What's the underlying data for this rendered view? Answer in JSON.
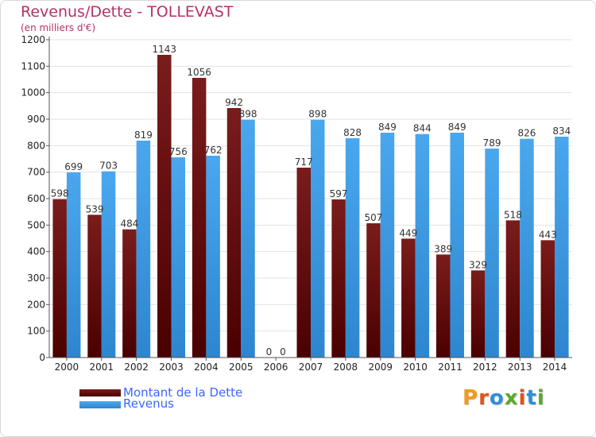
{
  "header": {
    "title": "Revenus/Dette - TOLLEVAST",
    "subtitle": "(en milliers d'€)"
  },
  "legend": {
    "debt_label": "Montant de la Dette",
    "revenue_label": "Revenus"
  },
  "logo": {
    "text": "Proxiti",
    "letters": [
      "P",
      "r",
      "o",
      "x",
      "i",
      "t",
      "i"
    ]
  },
  "colors": {
    "debt_top": "#7a1c1c",
    "debt_bottom": "#4a0000",
    "revenue_top": "#4aa7ee",
    "revenue_bottom": "#2d86cf",
    "title": "#b5316b",
    "legend_text": "#3a66ff",
    "logo_letters": [
      "#f29a1b",
      "#e0531b",
      "#2f8fd8",
      "#5aa82c",
      "#e0531b",
      "#2f8fd8",
      "#5aa82c"
    ]
  },
  "chart_data": {
    "type": "bar",
    "categories": [
      "2000",
      "2001",
      "2002",
      "2003",
      "2004",
      "2005",
      "2006",
      "2007",
      "2008",
      "2009",
      "2010",
      "2011",
      "2012",
      "2013",
      "2014"
    ],
    "series": [
      {
        "name": "Montant de la Dette",
        "values": [
          598,
          539,
          484,
          1143,
          1056,
          942,
          0,
          717,
          597,
          507,
          449,
          389,
          329,
          518,
          443
        ]
      },
      {
        "name": "Revenus",
        "values": [
          699,
          703,
          819,
          756,
          762,
          898,
          0,
          898,
          828,
          849,
          844,
          849,
          789,
          826,
          834
        ]
      }
    ],
    "ylim": [
      0,
      1200
    ],
    "yticks": [
      0,
      100,
      200,
      300,
      400,
      500,
      600,
      700,
      800,
      900,
      1000,
      1100,
      1200
    ],
    "grid": true,
    "legend_position": "bottom-left"
  }
}
